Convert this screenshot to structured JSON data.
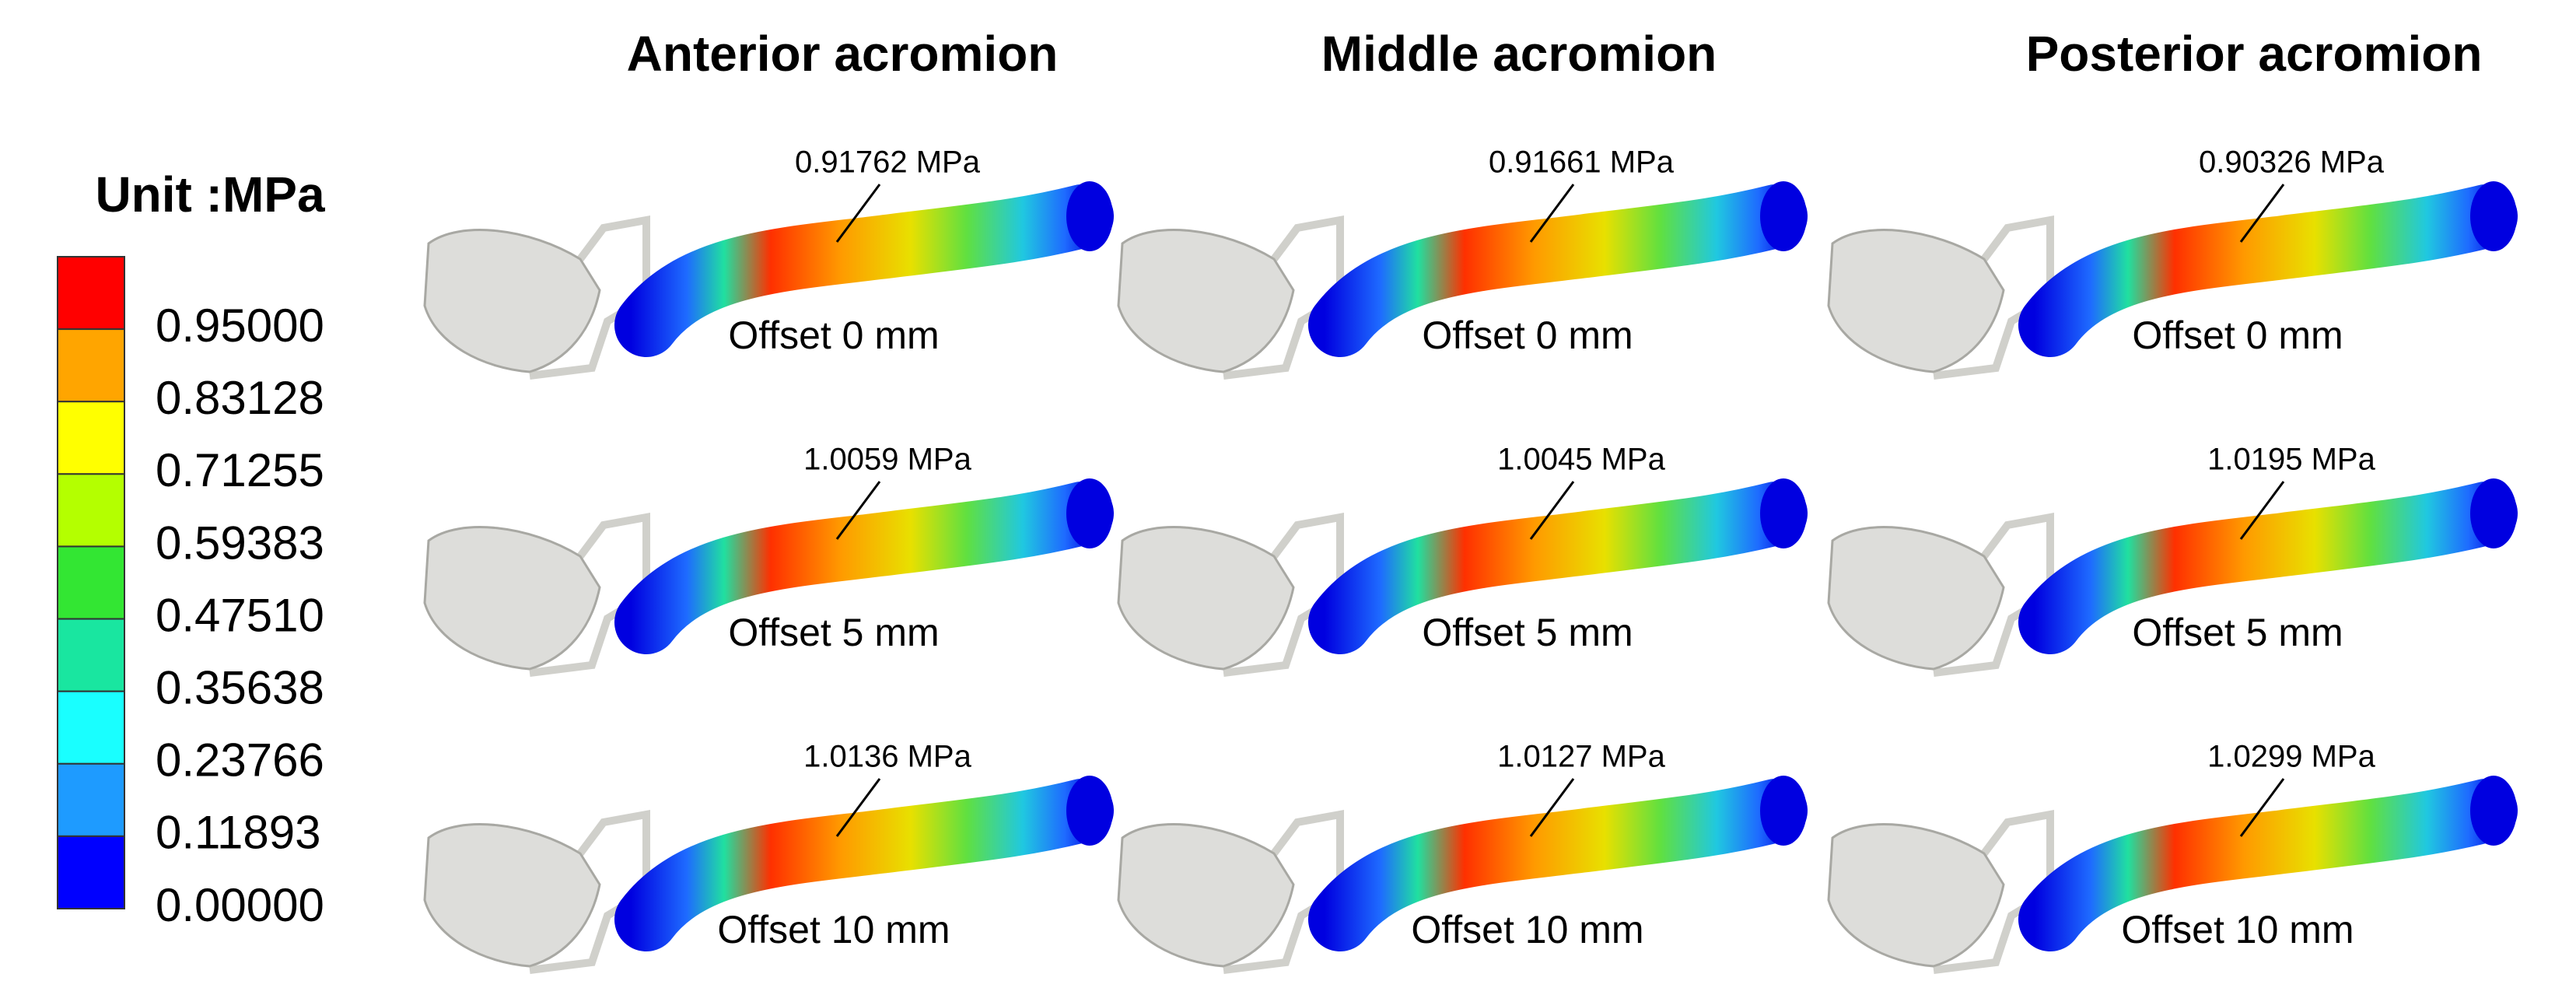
{
  "legend": {
    "title": "Unit :MPa",
    "labels": [
      "0.95000",
      "0.83128",
      "0.71255",
      "0.59383",
      "0.47510",
      "0.35638",
      "0.23766",
      "0.11893",
      "0.00000"
    ],
    "colors": [
      "#ff0000",
      "#ffa500",
      "#ffff00",
      "#b4ff00",
      "#33e633",
      "#19e6a0",
      "#19ffff",
      "#1e9bff",
      "#0000ff"
    ]
  },
  "columns": [
    {
      "title": "Anterior acromion",
      "panels": [
        {
          "max_stress": "0.91762 MPa",
          "offset": "Offset 0 mm"
        },
        {
          "max_stress": "1.0059 MPa",
          "offset": "Offset 5 mm"
        },
        {
          "max_stress": "1.0136 MPa",
          "offset": "Offset 10 mm"
        }
      ]
    },
    {
      "title": "Middle acromion",
      "panels": [
        {
          "max_stress": "0.91661 MPa",
          "offset": "Offset 0 mm"
        },
        {
          "max_stress": "1.0045 MPa",
          "offset": "Offset 5 mm"
        },
        {
          "max_stress": "1.0127 MPa",
          "offset": "Offset 10 mm"
        }
      ]
    },
    {
      "title": "Posterior acromion",
      "panels": [
        {
          "max_stress": "0.90326 MPa",
          "offset": "Offset 0 mm"
        },
        {
          "max_stress": "1.0195 MPa",
          "offset": "Offset 5 mm"
        },
        {
          "max_stress": "1.0299 MPa",
          "offset": "Offset 10 mm"
        }
      ]
    }
  ]
}
